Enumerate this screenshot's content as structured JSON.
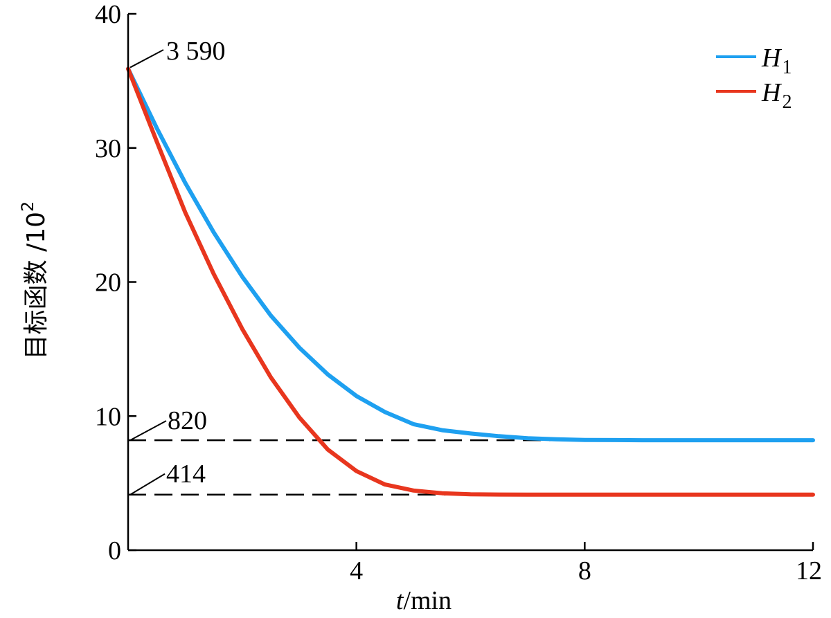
{
  "chart_data": {
    "type": "line",
    "xlabel": "t / min",
    "xlabel_var": "t",
    "xlabel_unit": "min",
    "ylabel": "目标函数 /10²",
    "ylabel_text": "目标函数 /10",
    "ylabel_exp": "2",
    "xlim": [
      0,
      12
    ],
    "ylim": [
      0,
      40
    ],
    "xticks": [
      4,
      8,
      12
    ],
    "yticks": [
      0,
      10,
      20,
      30,
      40
    ],
    "grid": false,
    "legend_position": "top-right",
    "series": [
      {
        "name": "H1",
        "name_base": "H",
        "name_sub": "1",
        "color": "#1ea0f0",
        "x": [
          0,
          0.5,
          1,
          1.5,
          2,
          2.5,
          3,
          3.5,
          4,
          4.5,
          5,
          5.5,
          6,
          6.5,
          7,
          7.5,
          8,
          9,
          10,
          11,
          12
        ],
        "y": [
          35.9,
          31.5,
          27.4,
          23.7,
          20.4,
          17.5,
          15.1,
          13.1,
          11.5,
          10.3,
          9.4,
          8.95,
          8.7,
          8.5,
          8.35,
          8.27,
          8.22,
          8.2,
          8.2,
          8.2,
          8.2
        ]
      },
      {
        "name": "H2",
        "name_base": "H",
        "name_sub": "2",
        "color": "#e8361e",
        "x": [
          0,
          0.5,
          1,
          1.5,
          2,
          2.5,
          3,
          3.5,
          4,
          4.5,
          5,
          5.5,
          6,
          6.5,
          7,
          8,
          9,
          10,
          11,
          12
        ],
        "y": [
          35.9,
          30.5,
          25.2,
          20.6,
          16.5,
          12.9,
          9.9,
          7.5,
          5.9,
          4.9,
          4.45,
          4.25,
          4.17,
          4.15,
          4.14,
          4.14,
          4.14,
          4.14,
          4.14,
          4.14
        ]
      }
    ],
    "reference_lines": [
      {
        "y": 8.2,
        "label": "820",
        "style": "dashed"
      },
      {
        "y": 4.14,
        "label": "414",
        "style": "dashed"
      }
    ],
    "annotations": [
      {
        "x": 0,
        "y": 35.9,
        "label": "3 590"
      }
    ]
  }
}
